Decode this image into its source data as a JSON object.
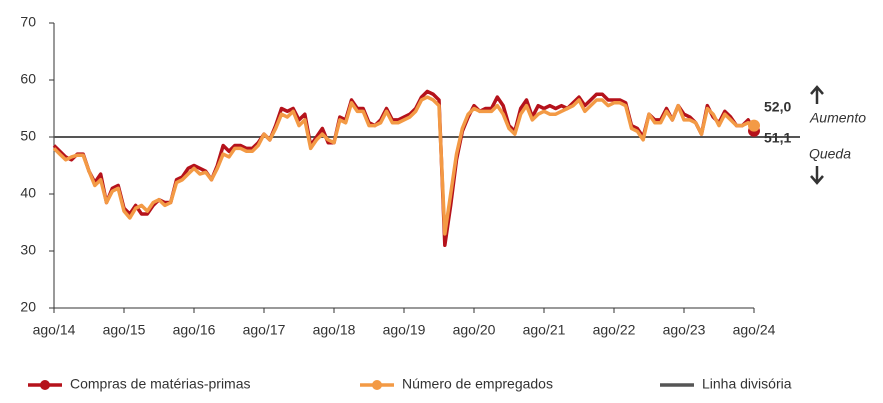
{
  "chart_data": {
    "type": "line",
    "categories": [
      "ago/14",
      null,
      null,
      null,
      null,
      null,
      null,
      null,
      null,
      null,
      null,
      null,
      "ago/15",
      null,
      null,
      null,
      null,
      null,
      null,
      null,
      null,
      null,
      null,
      null,
      "ago/16",
      null,
      null,
      null,
      null,
      null,
      null,
      null,
      null,
      null,
      null,
      null,
      "ago/17",
      null,
      null,
      null,
      null,
      null,
      null,
      null,
      null,
      null,
      null,
      null,
      "ago/18",
      null,
      null,
      null,
      null,
      null,
      null,
      null,
      null,
      null,
      null,
      null,
      "ago/19",
      null,
      null,
      null,
      null,
      null,
      null,
      null,
      null,
      null,
      null,
      null,
      "ago/20",
      null,
      null,
      null,
      null,
      null,
      null,
      null,
      null,
      null,
      null,
      null,
      "ago/21",
      null,
      null,
      null,
      null,
      null,
      null,
      null,
      null,
      null,
      null,
      null,
      "ago/22",
      null,
      null,
      null,
      null,
      null,
      null,
      null,
      null,
      null,
      null,
      null,
      "ago/23",
      null,
      null,
      null,
      null,
      null,
      null,
      null,
      null,
      null,
      null,
      null,
      "ago/24"
    ],
    "series": [
      {
        "name": "Compras de matérias-primas",
        "color": "#b5121b",
        "values": [
          48.5,
          47.5,
          46.5,
          46,
          47,
          47,
          44,
          42,
          43.5,
          38.5,
          41,
          41.5,
          37.5,
          36.5,
          38,
          36.5,
          36.5,
          38,
          39,
          38.5,
          38.5,
          42.5,
          43,
          44.5,
          45,
          44.5,
          44,
          42.5,
          45,
          48.5,
          47.5,
          48.5,
          48.5,
          48,
          48,
          49,
          50.5,
          49.5,
          52,
          55,
          54.5,
          55,
          53,
          54,
          48.5,
          50,
          51.5,
          49,
          49,
          53.5,
          53,
          56.5,
          55,
          55,
          52.5,
          52,
          53,
          55,
          53,
          53,
          53.5,
          54,
          55,
          57,
          58,
          57.5,
          56.5,
          31,
          38,
          46,
          51,
          53.5,
          55.5,
          54.5,
          55,
          55,
          57,
          55.5,
          52,
          51,
          55,
          56.5,
          53.5,
          55.5,
          55,
          55.5,
          55,
          55.5,
          55,
          56,
          57,
          55.5,
          56.5,
          57.5,
          57.5,
          56.5,
          56.5,
          56.5,
          56,
          52,
          51.5,
          50,
          54,
          53,
          53,
          55,
          53,
          55.5,
          54,
          53.5,
          52.5,
          50.5,
          55.5,
          53.5,
          52.5,
          54.5,
          53.5,
          52,
          52,
          53,
          51.1
        ],
        "value_labels": [
          null,
          null,
          null,
          null,
          null,
          null,
          null,
          null,
          null,
          null,
          null,
          null,
          null,
          null,
          null,
          null,
          null,
          null,
          null,
          null,
          null,
          null,
          null,
          null,
          null,
          null,
          null,
          null,
          null,
          null,
          null,
          null,
          null,
          null,
          null,
          null,
          null,
          null,
          null,
          null,
          null,
          null,
          null,
          null,
          null,
          null,
          null,
          null,
          null,
          null,
          null,
          null,
          null,
          null,
          null,
          null,
          null,
          null,
          null,
          null,
          null,
          null,
          null,
          null,
          null,
          null,
          null,
          null,
          null,
          null,
          null,
          null,
          null,
          null,
          null,
          null,
          null,
          null,
          null,
          null,
          null,
          null,
          null,
          null,
          null,
          null,
          null,
          null,
          null,
          null,
          null,
          null,
          null,
          null,
          null,
          null,
          null,
          null,
          null,
          null,
          null,
          null,
          null,
          null,
          null,
          null,
          null,
          null,
          null,
          null,
          null,
          null,
          null,
          null,
          null,
          null,
          null,
          null,
          null,
          null,
          "51,1"
        ]
      },
      {
        "name": "Número de empregados",
        "color": "#f39a45",
        "values": [
          48,
          47,
          46,
          46.5,
          46.8,
          46.8,
          44,
          41.5,
          42.5,
          38.5,
          40.5,
          41,
          37,
          35.8,
          37.5,
          38,
          37,
          38.5,
          39,
          38,
          38.5,
          42,
          42.5,
          43.5,
          44.5,
          43.5,
          43.8,
          42.5,
          44.5,
          47,
          46.5,
          48,
          48,
          47.5,
          47.5,
          48.5,
          50.5,
          49.5,
          51.5,
          54,
          53.5,
          54.5,
          52,
          53,
          48,
          49.5,
          50.5,
          49.5,
          49,
          53,
          52.5,
          56,
          54.5,
          54.5,
          52,
          52,
          52.5,
          54.5,
          52.5,
          52.5,
          53,
          53.5,
          54.5,
          56.5,
          57,
          56.5,
          55.5,
          33,
          40,
          47,
          51.5,
          54,
          55,
          54.5,
          54.5,
          54.5,
          55.5,
          54,
          51.5,
          50.5,
          54,
          55.5,
          53,
          54,
          54.5,
          54,
          54,
          54.5,
          55,
          55.5,
          56.5,
          54.5,
          55.5,
          56.5,
          56.5,
          55.5,
          56,
          56,
          55.5,
          51.5,
          51,
          49.5,
          54,
          52.5,
          52.5,
          54.5,
          53,
          55.5,
          53,
          53,
          52.5,
          50.5,
          55,
          54,
          52,
          54,
          53,
          52,
          52,
          52.5,
          52
        ],
        "value_labels": [
          null,
          null,
          null,
          null,
          null,
          null,
          null,
          null,
          null,
          null,
          null,
          null,
          null,
          null,
          null,
          null,
          null,
          null,
          null,
          null,
          null,
          null,
          null,
          null,
          null,
          null,
          null,
          null,
          null,
          null,
          null,
          null,
          null,
          null,
          null,
          null,
          null,
          null,
          null,
          null,
          null,
          null,
          null,
          null,
          null,
          null,
          null,
          null,
          null,
          null,
          null,
          null,
          null,
          null,
          null,
          null,
          null,
          null,
          null,
          null,
          null,
          null,
          null,
          null,
          null,
          null,
          null,
          null,
          null,
          null,
          null,
          null,
          null,
          null,
          null,
          null,
          null,
          null,
          null,
          null,
          null,
          null,
          null,
          null,
          null,
          null,
          null,
          null,
          null,
          null,
          null,
          null,
          null,
          null,
          null,
          null,
          null,
          null,
          null,
          null,
          null,
          null,
          null,
          null,
          null,
          null,
          null,
          null,
          null,
          null,
          null,
          null,
          null,
          null,
          null,
          null,
          null,
          null,
          null,
          null,
          "52,0"
        ]
      }
    ],
    "reference_line": {
      "name": "Linha divisória",
      "value": 50,
      "color": "#555555"
    },
    "annotations": {
      "above": "Aumento",
      "below": "Queda"
    },
    "ylim": [
      20,
      70
    ],
    "yticks": [
      20,
      30,
      40,
      50,
      60,
      70
    ],
    "grid": false
  }
}
